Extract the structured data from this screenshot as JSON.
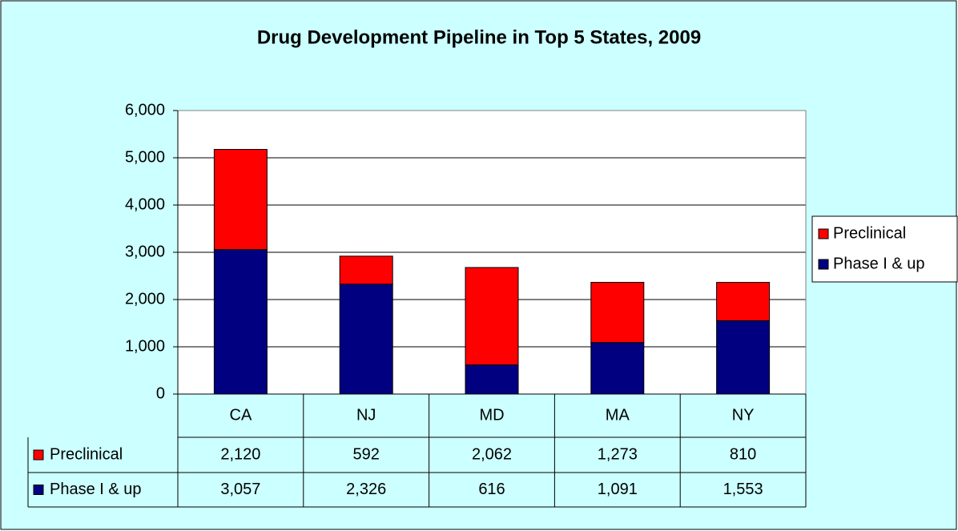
{
  "chart_data": {
    "type": "stacked_bar",
    "title": "Drug Development Pipeline in Top 5 States, 2009",
    "categories": [
      "CA",
      "NJ",
      "MD",
      "MA",
      "NY"
    ],
    "series": [
      {
        "name": "Preclinical",
        "color": "#ff0000",
        "values": [
          2120,
          592,
          2062,
          1273,
          810
        ],
        "value_labels": [
          "2,120",
          "592",
          "2,062",
          "1,273",
          "810"
        ]
      },
      {
        "name": "Phase I & up",
        "color": "#000080",
        "values": [
          3057,
          2326,
          616,
          1091,
          1553
        ],
        "value_labels": [
          "3,057",
          "2,326",
          "616",
          "1,091",
          "1,553"
        ]
      }
    ],
    "ylim": [
      0,
      6000
    ],
    "yticks": [
      0,
      {
        "value": 1000,
        "label": "1,000"
      },
      {
        "value": 2000,
        "label": "2,000"
      },
      {
        "value": 3000,
        "label": "3,000"
      },
      {
        "value": 4000,
        "label": "4,000"
      },
      {
        "value": 5000,
        "label": "5,000"
      },
      {
        "value": 6000,
        "label": "6,000"
      }
    ],
    "grid": true,
    "legend": "right"
  }
}
